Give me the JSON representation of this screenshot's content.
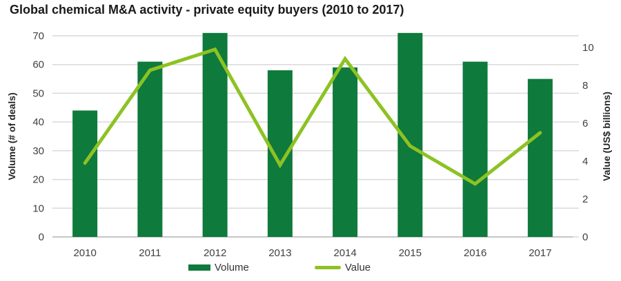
{
  "colors": {
    "bar": "#0e7a3c",
    "line": "#8dc223",
    "grid": "#d9d9d9",
    "axis_line": "#c6c6c6",
    "tick_text": "#404040",
    "axis_title_text": "#262626",
    "title_text": "#1a1a1a"
  },
  "chart_data": {
    "type": "combo",
    "title": "Global chemical M&A activity - private equity buyers (2010 to 2017)",
    "categories": [
      "2010",
      "2011",
      "2012",
      "2013",
      "2014",
      "2015",
      "2016",
      "2017"
    ],
    "series": [
      {
        "name": "Volume",
        "type": "bar",
        "axis": "left",
        "values": [
          44,
          61,
          71,
          58,
          59,
          71,
          61,
          55
        ]
      },
      {
        "name": "Value",
        "type": "line",
        "axis": "right",
        "values": [
          3.9,
          8.8,
          9.9,
          3.8,
          9.4,
          4.8,
          2.8,
          5.5
        ]
      }
    ],
    "left_axis": {
      "label": "Volume (# of deals)",
      "min": 0,
      "max": 70,
      "ticks": [
        0,
        10,
        20,
        30,
        40,
        50,
        60,
        70
      ]
    },
    "right_axis": {
      "label": "Value (US$ billions)",
      "min": 0,
      "max": 10,
      "ticks": [
        0,
        2,
        4,
        6,
        8,
        10
      ]
    },
    "legend_position": "bottom",
    "grid": true
  }
}
